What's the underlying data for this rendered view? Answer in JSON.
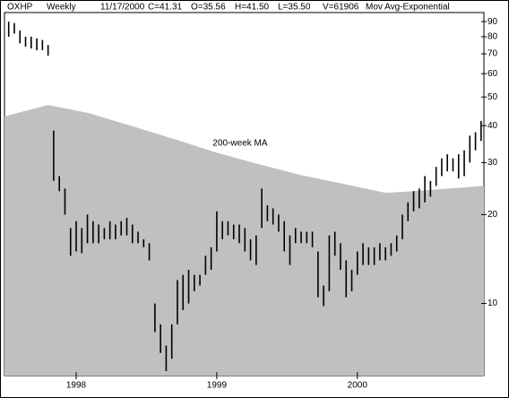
{
  "chart_data": {
    "type": "ohlc",
    "header": [
      "OXHP",
      "Weekly",
      "11/17/2000",
      "C=41.31",
      "O=35.56",
      "H=41.50",
      "L=35.50",
      "V=61906",
      "Mov Avg-Exponential"
    ],
    "x": [
      1997.52,
      1997.56,
      1997.6,
      1997.64,
      1997.68,
      1997.72,
      1997.76,
      1997.8,
      1997.84,
      1997.88,
      1997.92,
      1997.96,
      1998,
      1998.04,
      1998.08,
      1998.12,
      1998.16,
      1998.2,
      1998.24,
      1998.28,
      1998.32,
      1998.36,
      1998.4,
      1998.44,
      1998.48,
      1998.52,
      1998.56,
      1998.6,
      1998.64,
      1998.68,
      1998.72,
      1998.76,
      1998.8,
      1998.84,
      1998.88,
      1998.92,
      1998.96,
      1999,
      1999.04,
      1999.08,
      1999.12,
      1999.16,
      1999.2,
      1999.24,
      1999.28,
      1999.32,
      1999.36,
      1999.4,
      1999.44,
      1999.48,
      1999.52,
      1999.56,
      1999.6,
      1999.64,
      1999.68,
      1999.72,
      1999.76,
      1999.8,
      1999.84,
      1999.88,
      1999.92,
      1999.96,
      2000,
      2000.04,
      2000.08,
      2000.12,
      2000.16,
      2000.2,
      2000.24,
      2000.28,
      2000.32,
      2000.36,
      2000.4,
      2000.44,
      2000.48,
      2000.52,
      2000.56,
      2000.6,
      2000.64,
      2000.68,
      2000.72,
      2000.76,
      2000.8,
      2000.84,
      2000.88
    ],
    "high": [
      90,
      89,
      84,
      80,
      80,
      79,
      78,
      75,
      38.5,
      27,
      24.5,
      18,
      19,
      18,
      20,
      19,
      18.5,
      18,
      19,
      18.5,
      19,
      19.5,
      18.5,
      17.5,
      16.5,
      16,
      10,
      8.5,
      7.2,
      8.5,
      12,
      12.5,
      13,
      12.5,
      12.5,
      14.5,
      15.5,
      20.5,
      19,
      19,
      18.5,
      18.5,
      18,
      16.5,
      17,
      24.5,
      21.5,
      21,
      20,
      19,
      17,
      18,
      17.5,
      17.5,
      17.5,
      15,
      11.5,
      17,
      17.5,
      16,
      14,
      13,
      15,
      16,
      15.5,
      15.5,
      16,
      15.5,
      16,
      17,
      20,
      22,
      24,
      24.5,
      27,
      26,
      29,
      31,
      32,
      31,
      32,
      33,
      37,
      38,
      41.5
    ],
    "low": [
      80,
      82,
      76,
      74,
      73,
      72,
      72,
      69,
      26,
      24,
      20,
      14.5,
      15,
      14.8,
      16,
      16,
      16,
      16.5,
      16.5,
      16.5,
      17,
      17,
      16,
      16,
      15.5,
      14,
      8,
      6.8,
      5.9,
      6.5,
      8.5,
      9.5,
      10,
      11,
      11.5,
      12.5,
      13,
      15,
      16.5,
      17,
      16.5,
      16,
      15,
      14,
      13.5,
      18,
      19,
      18.5,
      17.5,
      15,
      13.5,
      16,
      16,
      16,
      15.5,
      10.5,
      9.8,
      11,
      14.5,
      13,
      10.5,
      11,
      12.5,
      13.5,
      13.5,
      13.5,
      14,
      14,
      14.5,
      15,
      16.5,
      19,
      20.5,
      21,
      22,
      23,
      25,
      27,
      28,
      28,
      26.5,
      27,
      30,
      33,
      35.5
    ],
    "color": "#000000",
    "ma": {
      "name": "200-week MA",
      "x": [
        1997.49,
        1997.8,
        1998.1,
        1998.7,
        1999.0,
        1999.3,
        1999.6,
        1999.9,
        2000.2,
        2000.4,
        2000.9
      ],
      "values": [
        43,
        47,
        44,
        36,
        32.4,
        29.6,
        27.2,
        25.4,
        23.7,
        24,
        25
      ],
      "color": "#c0c0c0"
    },
    "xlim": [
      1997.49,
      2000.9
    ],
    "xticks": [
      1998,
      1999,
      2000
    ],
    "ylim": [
      5.7,
      96.6
    ],
    "yticks": [
      10,
      20,
      30,
      40,
      50,
      60,
      70,
      80,
      90
    ],
    "log_scale": true
  }
}
